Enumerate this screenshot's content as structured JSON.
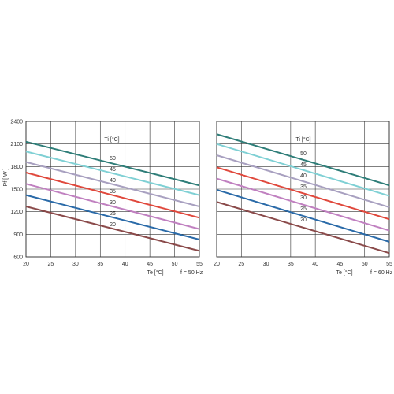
{
  "figure": {
    "ylabel": "Pf  [ W ]",
    "x_ticks": [
      "20",
      "25",
      "30",
      "35",
      "40",
      "45",
      "50",
      "55"
    ],
    "y_ticks": [
      "600",
      "900",
      "1200",
      "1500",
      "1800",
      "2100",
      "2400"
    ]
  },
  "colors": {
    "grid": "#333333",
    "Ti50": "#2e7d78",
    "Ti45": "#7fd0d4",
    "Ti40": "#a8a0c0",
    "Ti35": "#e0483c",
    "Ti30": "#c080c0",
    "Ti25": "#2a6aa8",
    "Ti20": "#8a4a4a"
  },
  "chart_data": [
    {
      "type": "line",
      "xlabel": "Te  [°C]",
      "ylabel": "Pf  [ W ]",
      "footnote": "f = 50 Hz",
      "legend_title": "Ti  [°C]",
      "legend_placement": "top-right",
      "grid": true,
      "xlim": [
        20,
        55
      ],
      "ylim": [
        600,
        2400
      ],
      "x": [
        20,
        55
      ],
      "series": [
        {
          "name": "50",
          "color_key": "Ti50",
          "values": [
            2130,
            1550
          ]
        },
        {
          "name": "45",
          "color_key": "Ti45",
          "values": [
            2000,
            1420
          ]
        },
        {
          "name": "40",
          "color_key": "Ti40",
          "values": [
            1860,
            1270
          ]
        },
        {
          "name": "35",
          "color_key": "Ti35",
          "values": [
            1720,
            1120
          ]
        },
        {
          "name": "30",
          "color_key": "Ti30",
          "values": [
            1570,
            970
          ]
        },
        {
          "name": "25",
          "color_key": "Ti25",
          "values": [
            1420,
            830
          ]
        },
        {
          "name": "20",
          "color_key": "Ti20",
          "values": [
            1270,
            680
          ]
        }
      ]
    },
    {
      "type": "line",
      "xlabel": "Te  [°C]",
      "footnote": "f = 60 Hz",
      "legend_title": "Ti  [°C]",
      "legend_placement": "top-right",
      "grid": true,
      "xlim": [
        20,
        55
      ],
      "ylim": [
        600,
        2400
      ],
      "x": [
        20,
        55
      ],
      "series": [
        {
          "name": "50",
          "color_key": "Ti50",
          "values": [
            2230,
            1550
          ]
        },
        {
          "name": "45",
          "color_key": "Ti45",
          "values": [
            2100,
            1410
          ]
        },
        {
          "name": "40",
          "color_key": "Ti40",
          "values": [
            1950,
            1260
          ]
        },
        {
          "name": "35",
          "color_key": "Ti35",
          "values": [
            1790,
            1100
          ]
        },
        {
          "name": "30",
          "color_key": "Ti30",
          "values": [
            1640,
            950
          ]
        },
        {
          "name": "25",
          "color_key": "Ti25",
          "values": [
            1490,
            800
          ]
        },
        {
          "name": "20",
          "color_key": "Ti20",
          "values": [
            1330,
            650
          ]
        }
      ]
    }
  ]
}
